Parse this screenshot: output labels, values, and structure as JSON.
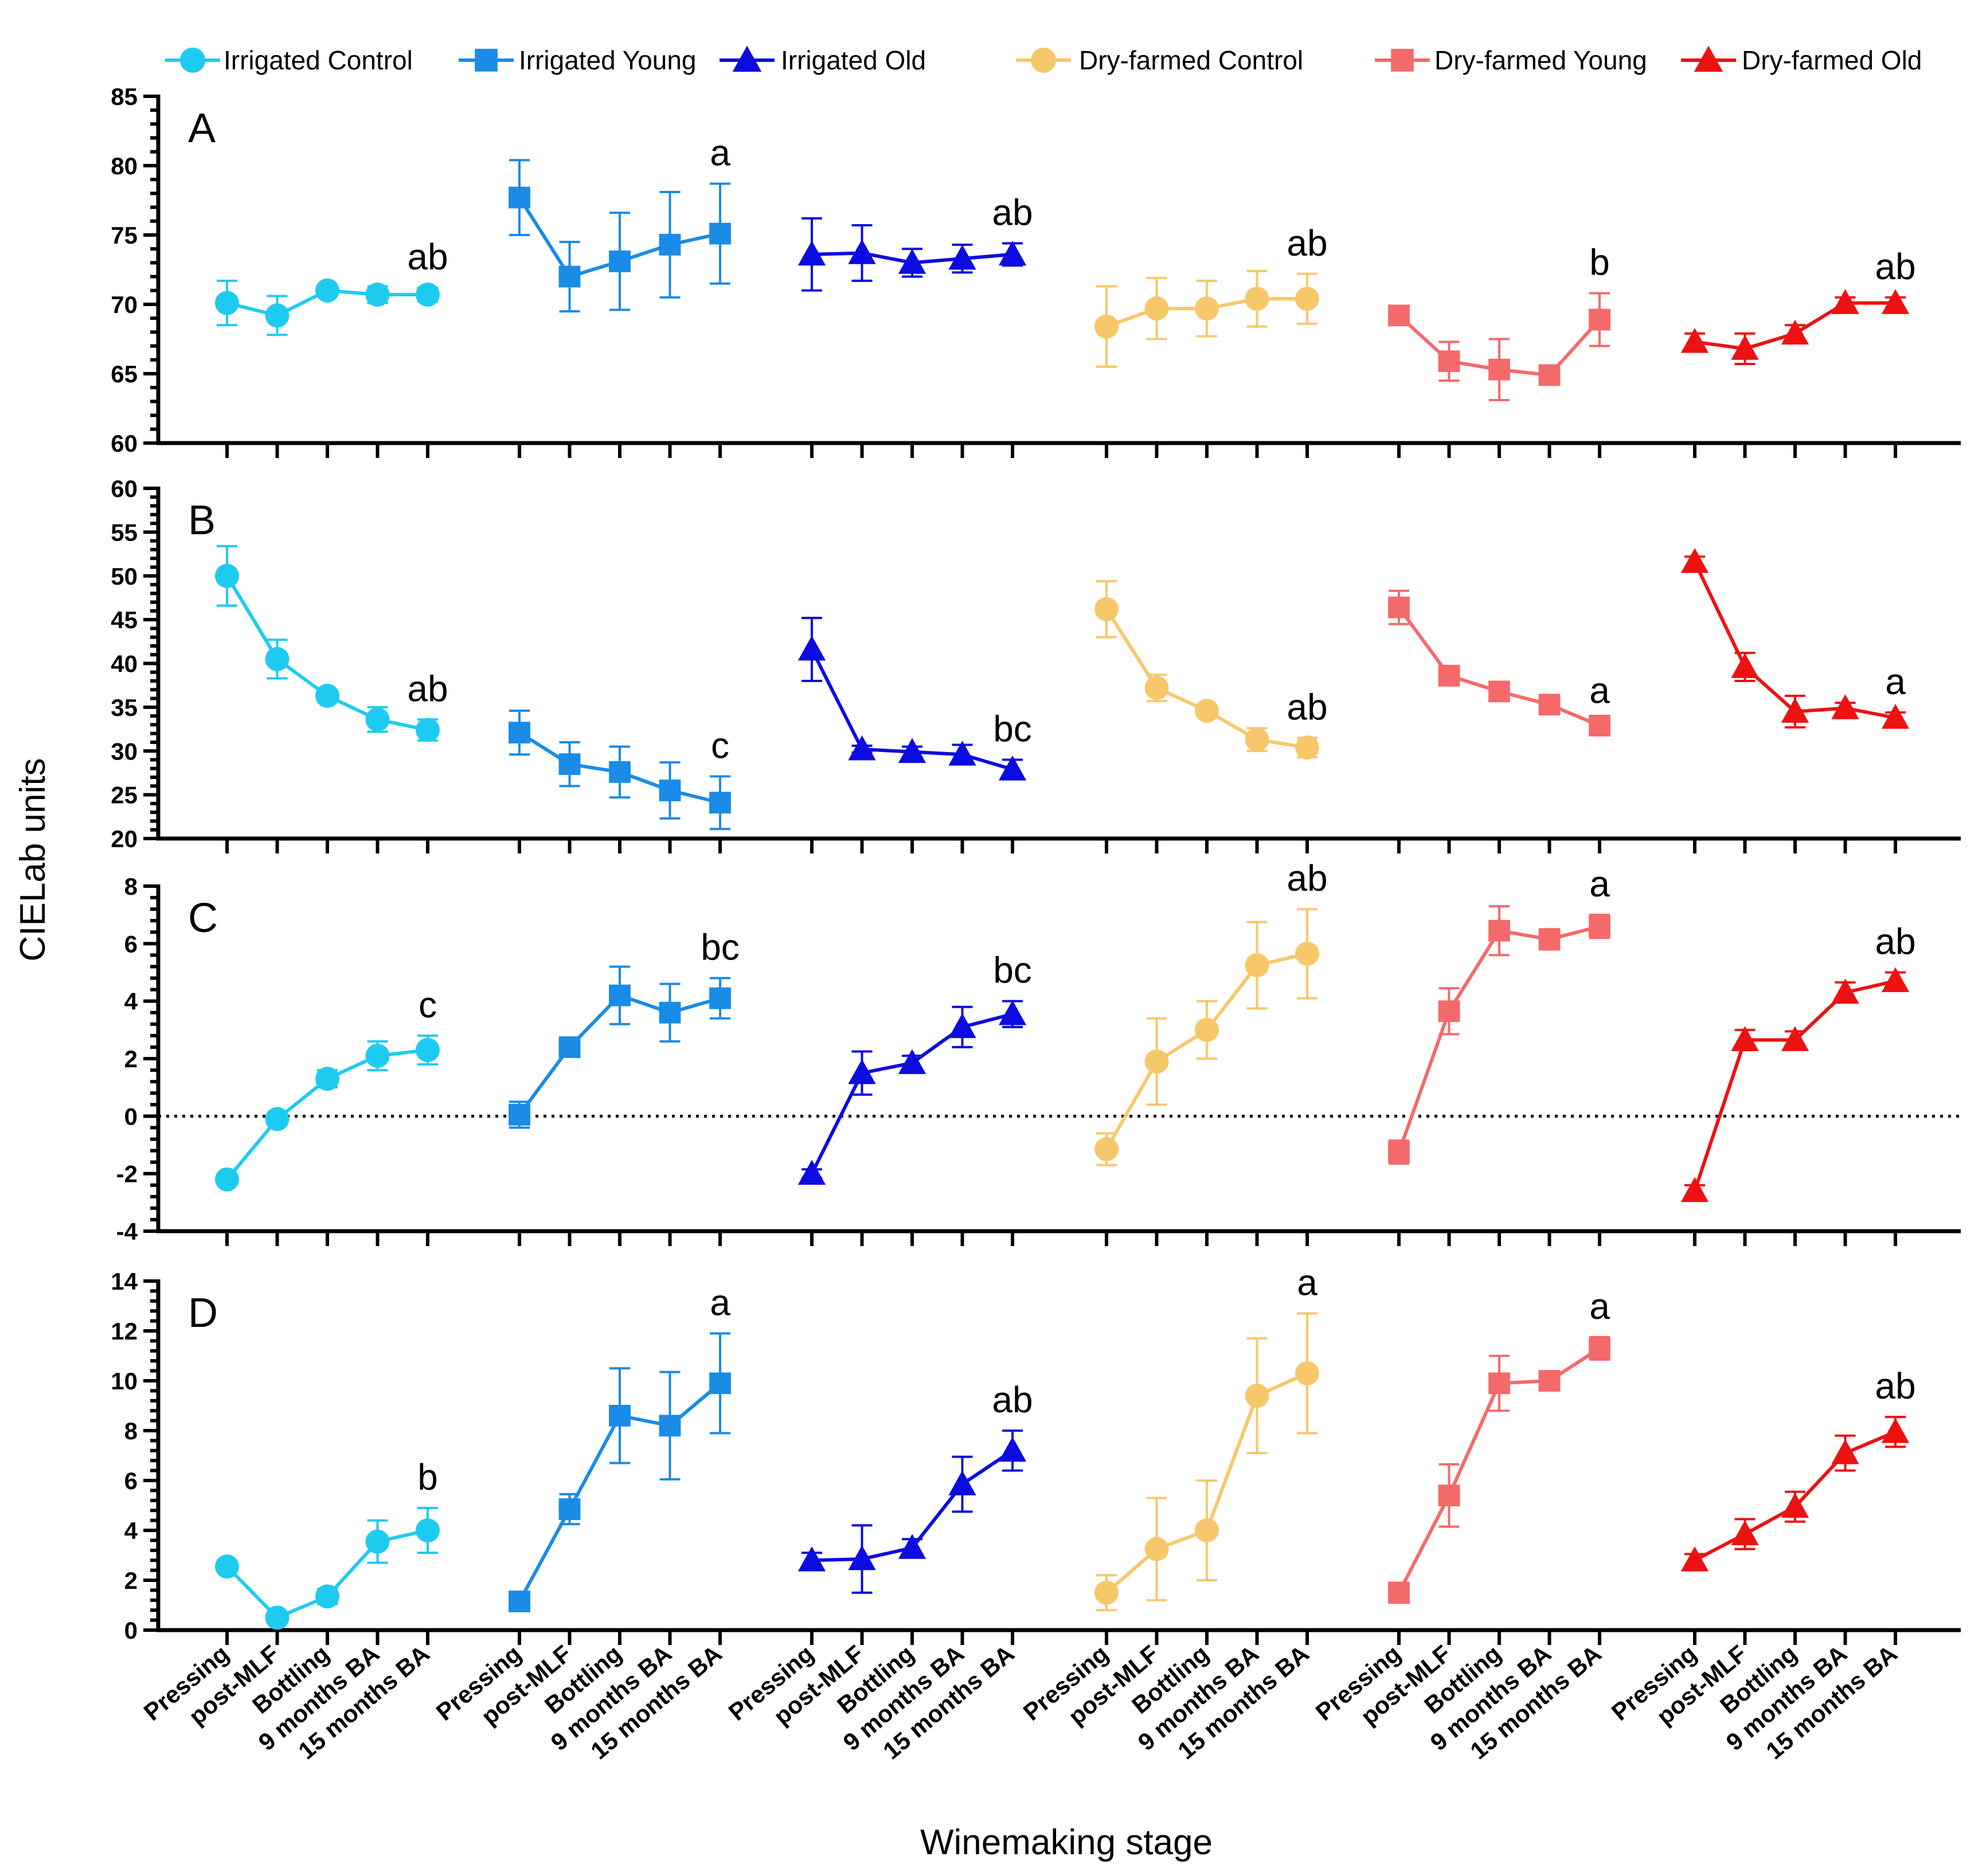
{
  "chart_data": {
    "type": "line",
    "ylabel": "CIELab units",
    "xlabel": "Winemaking stage",
    "stages": [
      "Pressing",
      "post-MLF",
      "Bottling",
      "9 months BA",
      "15 months BA"
    ],
    "groups": [
      {
        "name": "Irrigated Control",
        "color": "#1ecbf0",
        "marker": "circle"
      },
      {
        "name": "Irrigated Young",
        "color": "#1a8be6",
        "marker": "square"
      },
      {
        "name": "Irrigated Old",
        "color": "#0c0ce0",
        "marker": "triangle"
      },
      {
        "name": "Dry-farmed Control",
        "color": "#f7c86a",
        "marker": "circle"
      },
      {
        "name": "Dry-farmed Young",
        "color": "#f46a6a",
        "marker": "square"
      },
      {
        "name": "Dry-farmed Old",
        "color": "#ee1111",
        "marker": "triangle"
      }
    ],
    "panels": [
      {
        "label": "A",
        "ylim": [
          60,
          85
        ],
        "yticks": [
          60,
          65,
          70,
          75,
          80,
          85
        ],
        "zero_line": false,
        "series": [
          {
            "values": [
              70.1,
              69.2,
              71.0,
              70.7,
              70.7
            ],
            "errors": [
              1.6,
              1.4,
              0.4,
              0.6,
              0.5
            ],
            "sig": "ab"
          },
          {
            "values": [
              77.7,
              72.0,
              73.1,
              74.3,
              75.1
            ],
            "errors": [
              2.7,
              2.5,
              3.5,
              3.8,
              3.6
            ],
            "sig": "a"
          },
          {
            "values": [
              73.6,
              73.7,
              73.0,
              73.3,
              73.6
            ],
            "errors": [
              2.6,
              2.0,
              1.0,
              1.0,
              0.8
            ],
            "sig": "ab"
          },
          {
            "values": [
              68.4,
              69.7,
              69.7,
              70.4,
              70.4
            ],
            "errors": [
              2.9,
              2.2,
              2.0,
              2.0,
              1.8
            ],
            "sig": "ab"
          },
          {
            "values": [
              69.2,
              65.9,
              65.3,
              64.9,
              68.9
            ],
            "errors": [
              0.4,
              1.4,
              2.2,
              0.4,
              1.9
            ],
            "sig": "b"
          },
          {
            "values": [
              67.3,
              66.8,
              67.9,
              70.1,
              70.1
            ],
            "errors": [
              0.6,
              1.1,
              0.6,
              0.4,
              0.4
            ],
            "sig": "ab"
          }
        ]
      },
      {
        "label": "B",
        "ylim": [
          20,
          60
        ],
        "yticks": [
          20,
          25,
          30,
          35,
          40,
          45,
          50,
          55,
          60
        ],
        "zero_line": false,
        "series": [
          {
            "values": [
              50.0,
              40.5,
              36.3,
              33.6,
              32.4
            ],
            "errors": [
              3.4,
              2.2,
              0.6,
              1.4,
              1.2
            ],
            "sig": "ab"
          },
          {
            "values": [
              32.1,
              28.5,
              27.6,
              25.5,
              24.1
            ],
            "errors": [
              2.5,
              2.5,
              2.9,
              3.2,
              3.0
            ],
            "sig": "c"
          },
          {
            "values": [
              41.6,
              30.2,
              29.9,
              29.6,
              27.9
            ],
            "errors": [
              3.6,
              0.4,
              0.6,
              1.1,
              1.1
            ],
            "sig": "bc"
          },
          {
            "values": [
              46.2,
              37.2,
              34.6,
              31.3,
              30.4
            ],
            "errors": [
              3.2,
              1.5,
              0.6,
              1.3,
              1.1
            ],
            "sig": "ab"
          },
          {
            "values": [
              46.4,
              38.6,
              36.8,
              35.3,
              32.9
            ],
            "errors": [
              1.9,
              0.5,
              0.5,
              0.5,
              0.5
            ],
            "sig": "a"
          },
          {
            "values": [
              51.6,
              39.6,
              34.5,
              34.9,
              33.8
            ],
            "errors": [
              0.6,
              1.6,
              1.8,
              0.6,
              0.6
            ],
            "sig": "a"
          }
        ]
      },
      {
        "label": "C",
        "ylim": [
          -4,
          8
        ],
        "yticks": [
          -4,
          -2,
          0,
          2,
          4,
          6,
          8
        ],
        "zero_line": true,
        "series": [
          {
            "values": [
              -2.2,
              -0.1,
              1.3,
              2.1,
              2.3
            ],
            "errors": [
              0.1,
              0.1,
              0.3,
              0.5,
              0.5
            ],
            "sig": "c"
          },
          {
            "values": [
              0.05,
              2.4,
              4.2,
              3.6,
              4.1
            ],
            "errors": [
              0.45,
              0.3,
              1.0,
              1.0,
              0.7
            ],
            "sig": "bc"
          },
          {
            "values": [
              -2.0,
              1.5,
              1.85,
              3.1,
              3.55
            ],
            "errors": [
              0.15,
              0.75,
              0.25,
              0.7,
              0.45
            ],
            "sig": "bc"
          },
          {
            "values": [
              -1.15,
              1.9,
              3.0,
              5.25,
              5.65
            ],
            "errors": [
              0.55,
              1.5,
              1.0,
              1.5,
              1.55
            ],
            "sig": "ab"
          },
          {
            "values": [
              -1.25,
              3.65,
              6.45,
              6.15,
              6.6
            ],
            "errors": [
              0.4,
              0.8,
              0.85,
              0.35,
              0.4
            ],
            "sig": "a"
          },
          {
            "values": [
              -2.6,
              2.65,
              2.65,
              4.3,
              4.7
            ],
            "errors": [
              0.2,
              0.35,
              0.3,
              0.35,
              0.3
            ],
            "sig": "ab"
          }
        ]
      },
      {
        "label": "D",
        "ylim": [
          0,
          14
        ],
        "yticks": [
          0,
          2,
          4,
          6,
          8,
          10,
          12,
          14
        ],
        "zero_line": false,
        "series": [
          {
            "values": [
              2.55,
              0.5,
              1.35,
              3.55,
              4.0
            ],
            "errors": [
              0.1,
              0.1,
              0.3,
              0.85,
              0.9
            ],
            "sig": "b"
          },
          {
            "values": [
              1.15,
              4.85,
              8.6,
              8.2,
              9.9
            ],
            "errors": [
              0.1,
              0.6,
              1.9,
              2.15,
              2.0
            ],
            "sig": "a"
          },
          {
            "values": [
              2.8,
              2.85,
              3.3,
              5.85,
              7.2
            ],
            "errors": [
              0.3,
              1.35,
              0.35,
              1.1,
              0.8
            ],
            "sig": "ab"
          },
          {
            "values": [
              1.5,
              3.25,
              4.0,
              9.4,
              10.3
            ],
            "errors": [
              0.7,
              2.05,
              2.0,
              2.3,
              2.4
            ],
            "sig": "a"
          },
          {
            "values": [
              1.5,
              5.4,
              9.9,
              10.0,
              11.3
            ],
            "errors": [
              0.4,
              1.25,
              1.1,
              0.2,
              0.45
            ],
            "sig": "a"
          },
          {
            "values": [
              2.8,
              3.85,
              4.95,
              7.1,
              7.95
            ],
            "errors": [
              0.25,
              0.6,
              0.6,
              0.7,
              0.6
            ],
            "sig": "ab"
          }
        ]
      }
    ]
  }
}
